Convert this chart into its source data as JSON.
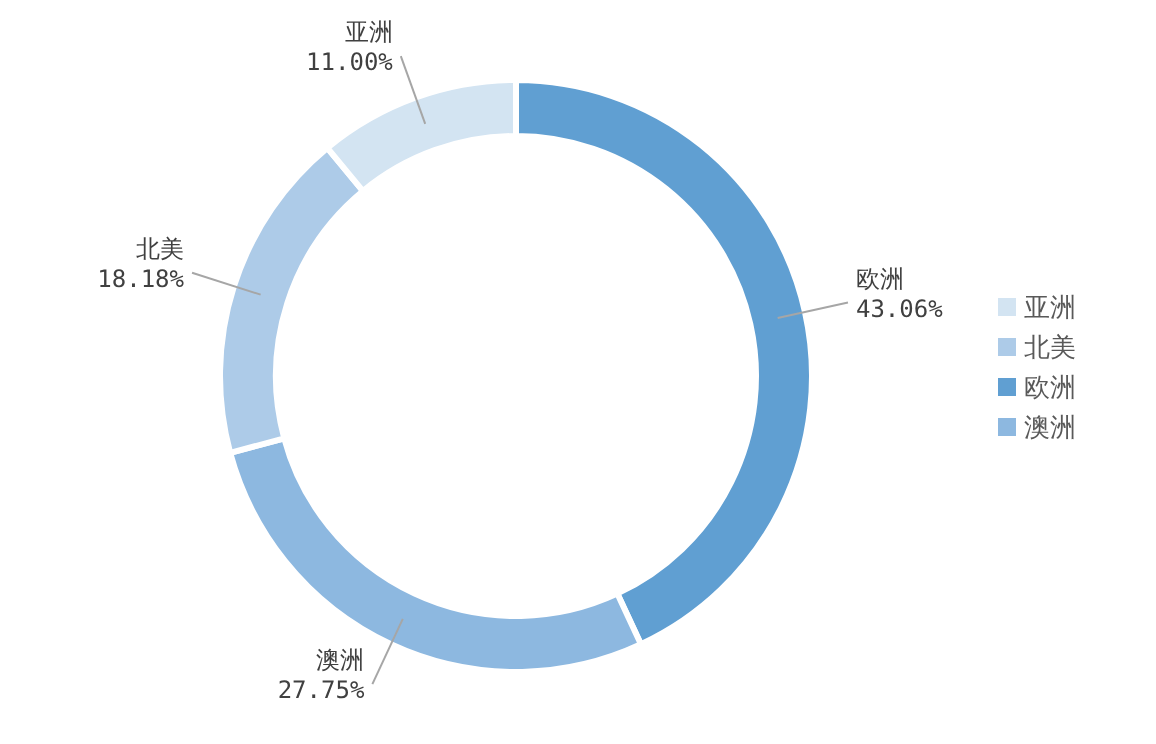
{
  "chart_data": {
    "type": "donut",
    "categories": [
      "欧洲",
      "澳洲",
      "北美",
      "亚洲"
    ],
    "values": [
      43.06,
      27.75,
      18.18,
      11.0
    ],
    "value_labels": [
      "43.06%",
      "27.75%",
      "18.18%",
      "11.00%"
    ],
    "colors": [
      "#609fd2",
      "#8db8e0",
      "#adcbe8",
      "#d3e4f2"
    ],
    "legend": "right"
  }
}
